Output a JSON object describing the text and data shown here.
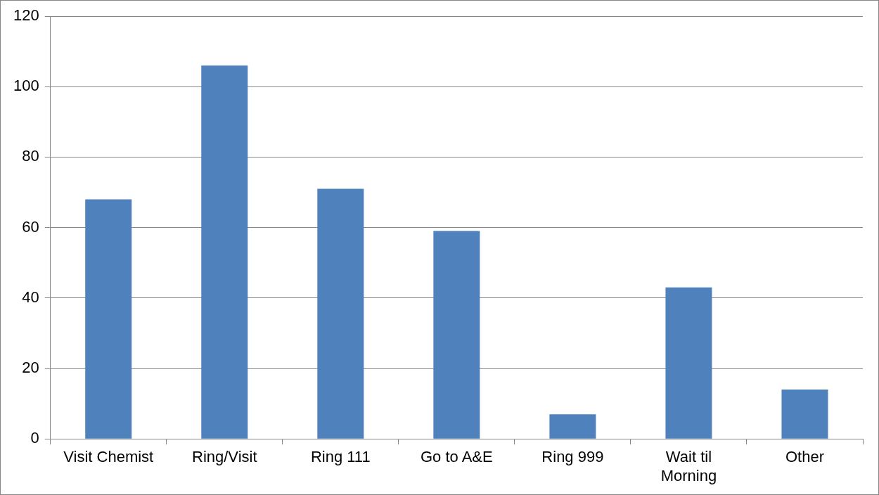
{
  "chart_data": {
    "type": "bar",
    "categories": [
      "Visit Chemist",
      "Ring/Visit",
      "Ring 111",
      "Go to A&E",
      "Ring 999",
      "Wait til Morning",
      "Other"
    ],
    "values": [
      68,
      106,
      71,
      59,
      7,
      43,
      14
    ],
    "color": "#4f81bd",
    "ylim": [
      0,
      120
    ],
    "yticks": [
      0,
      20,
      40,
      60,
      80,
      100,
      120
    ],
    "grid": "y",
    "legend": false
  }
}
